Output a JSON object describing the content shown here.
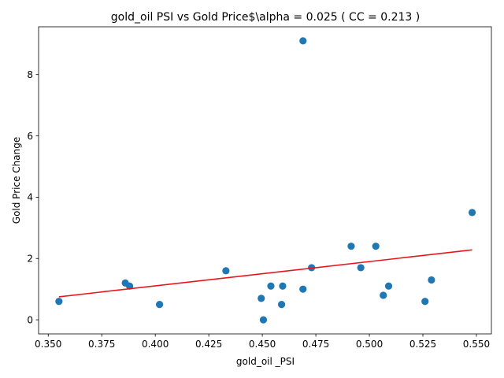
{
  "chart_data": {
    "type": "scatter",
    "title": "gold_oil  PSI vs Gold Price$\\alpha = 0.025 ( CC = 0.213 )",
    "xlabel": "gold_oil _PSI",
    "ylabel": "Gold Price Change",
    "xlim": [
      0.3455,
      0.557
    ],
    "ylim": [
      -0.46,
      9.56
    ],
    "xticks": [
      0.35,
      0.375,
      0.4,
      0.425,
      0.45,
      0.475,
      0.5,
      0.525,
      0.55
    ],
    "xtick_labels": [
      "0.350",
      "0.375",
      "0.400",
      "0.425",
      "0.450",
      "0.475",
      "0.500",
      "0.525",
      "0.550"
    ],
    "yticks": [
      0,
      2,
      4,
      6,
      8
    ],
    "ytick_labels": [
      "0",
      "2",
      "4",
      "6",
      "8"
    ],
    "grid": false,
    "points": [
      {
        "x": 0.355,
        "y": 0.6
      },
      {
        "x": 0.386,
        "y": 1.2
      },
      {
        "x": 0.388,
        "y": 1.1
      },
      {
        "x": 0.402,
        "y": 0.5
      },
      {
        "x": 0.433,
        "y": 1.6
      },
      {
        "x": 0.4495,
        "y": 0.7
      },
      {
        "x": 0.4505,
        "y": 0.0
      },
      {
        "x": 0.454,
        "y": 1.1
      },
      {
        "x": 0.459,
        "y": 0.5
      },
      {
        "x": 0.4595,
        "y": 1.1
      },
      {
        "x": 0.469,
        "y": 9.1
      },
      {
        "x": 0.469,
        "y": 1.0
      },
      {
        "x": 0.473,
        "y": 1.7
      },
      {
        "x": 0.4915,
        "y": 2.4
      },
      {
        "x": 0.496,
        "y": 1.7
      },
      {
        "x": 0.503,
        "y": 2.4
      },
      {
        "x": 0.5065,
        "y": 0.8
      },
      {
        "x": 0.509,
        "y": 1.1
      },
      {
        "x": 0.526,
        "y": 0.6
      },
      {
        "x": 0.529,
        "y": 1.3
      },
      {
        "x": 0.548,
        "y": 3.5
      }
    ],
    "fit_line": {
      "x": [
        0.355,
        0.548
      ],
      "y": [
        0.75,
        2.28
      ]
    },
    "colors": {
      "points": "#1f77b4",
      "fit_line": "#e8161c",
      "axes": "#000000",
      "background": "#ffffff"
    }
  }
}
